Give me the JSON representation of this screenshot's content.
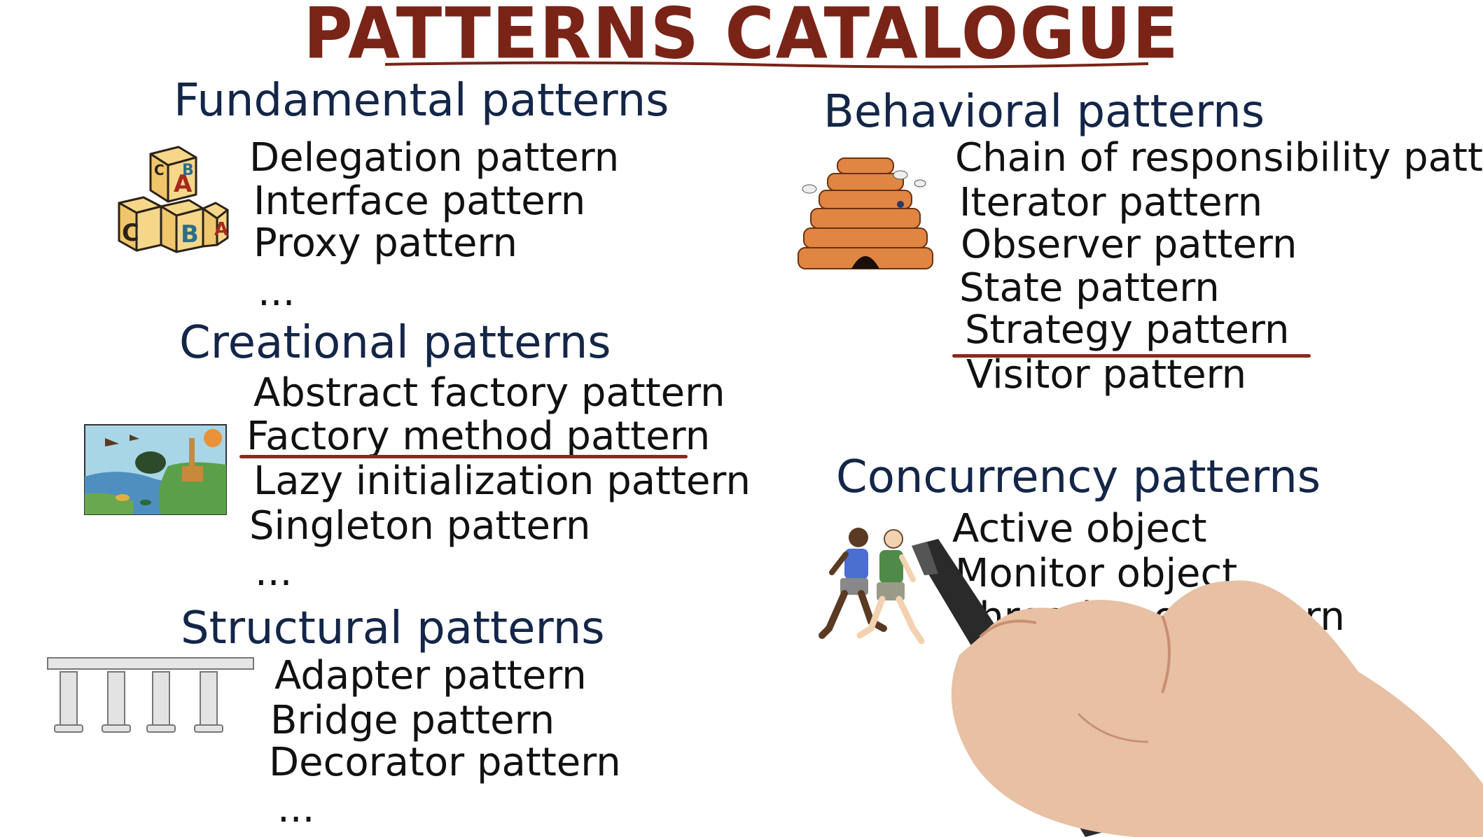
{
  "title": "PATTERNS CATALOGUE",
  "colors": {
    "title": "#7a2418",
    "heading": "#142648",
    "item": "#111111",
    "underline": "#8a2a1e"
  },
  "sections": {
    "fundamental": {
      "heading": "Fundamental patterns",
      "items": [
        "Delegation pattern",
        "Interface pattern",
        "Proxy pattern",
        "..."
      ]
    },
    "creational": {
      "heading": "Creational patterns",
      "items": [
        "Abstract factory pattern",
        "Factory method pattern",
        "Lazy initialization pattern",
        "Singleton pattern",
        "..."
      ]
    },
    "structural": {
      "heading": "Structural patterns",
      "items": [
        "Adapter pattern",
        "Bridge pattern",
        "Decorator pattern",
        "..."
      ]
    },
    "behavioral": {
      "heading": "Behavioral patterns",
      "items": [
        "Chain of responsibility pattern",
        "Iterator pattern",
        "Observer pattern",
        "State pattern",
        "Strategy pattern",
        "Visitor pattern"
      ]
    },
    "concurrency": {
      "heading": "Concurrency patterns",
      "items": [
        "Active object",
        "Monitor object",
        "Thread pool pattern",
        "..."
      ]
    }
  },
  "illustrations": {
    "blocks_letters": [
      "A",
      "B",
      "C",
      "B",
      "A",
      "C"
    ]
  }
}
